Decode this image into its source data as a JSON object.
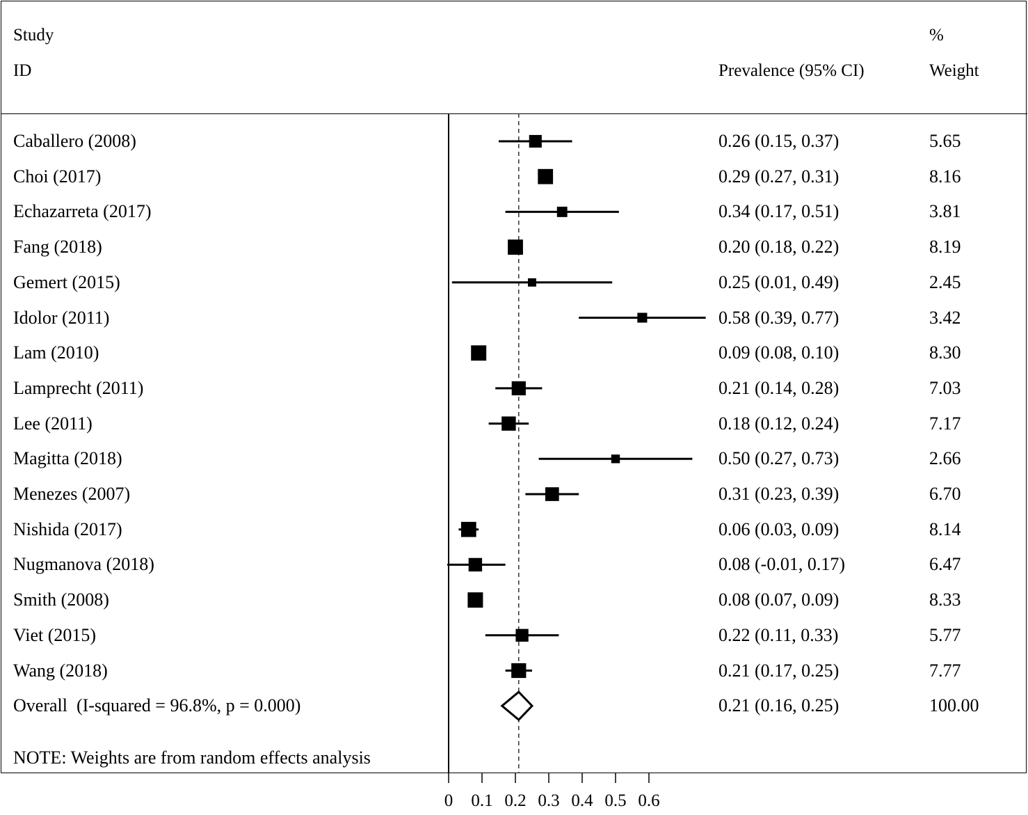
{
  "header": {
    "study_label": "Study",
    "id_label": "ID",
    "estimate_label": "Prevalence (95% CI)",
    "percent_label": "%",
    "weight_label": "Weight"
  },
  "note": "NOTE: Weights are from random effects analysis",
  "chart_data": {
    "type": "forest",
    "xaxis_ticks": [
      "0",
      "0.1",
      "0.2",
      "0.3",
      "0.4",
      "0.5",
      "0.6"
    ],
    "xlim": [
      0,
      0.6
    ],
    "reference_line": 0.21,
    "studies": [
      {
        "label": "Caballero (2008)",
        "estimate": 0.26,
        "lower": 0.15,
        "upper": 0.37,
        "ci_text": "0.26 (0.15, 0.37)",
        "weight": "5.65"
      },
      {
        "label": "Choi (2017)",
        "estimate": 0.29,
        "lower": 0.27,
        "upper": 0.31,
        "ci_text": "0.29 (0.27, 0.31)",
        "weight": "8.16"
      },
      {
        "label": "Echazarreta (2017)",
        "estimate": 0.34,
        "lower": 0.17,
        "upper": 0.51,
        "ci_text": "0.34 (0.17, 0.51)",
        "weight": "3.81"
      },
      {
        "label": "Fang (2018)",
        "estimate": 0.2,
        "lower": 0.18,
        "upper": 0.22,
        "ci_text": "0.20 (0.18, 0.22)",
        "weight": "8.19"
      },
      {
        "label": "Gemert (2015)",
        "estimate": 0.25,
        "lower": 0.01,
        "upper": 0.49,
        "ci_text": "0.25 (0.01, 0.49)",
        "weight": "2.45"
      },
      {
        "label": "Idolor (2011)",
        "estimate": 0.58,
        "lower": 0.39,
        "upper": 0.77,
        "ci_text": "0.58 (0.39, 0.77)",
        "weight": "3.42"
      },
      {
        "label": "Lam (2010)",
        "estimate": 0.09,
        "lower": 0.08,
        "upper": 0.1,
        "ci_text": "0.09 (0.08, 0.10)",
        "weight": "8.30"
      },
      {
        "label": "Lamprecht (2011)",
        "estimate": 0.21,
        "lower": 0.14,
        "upper": 0.28,
        "ci_text": "0.21 (0.14, 0.28)",
        "weight": "7.03"
      },
      {
        "label": "Lee (2011)",
        "estimate": 0.18,
        "lower": 0.12,
        "upper": 0.24,
        "ci_text": "0.18 (0.12, 0.24)",
        "weight": "7.17"
      },
      {
        "label": "Magitta (2018)",
        "estimate": 0.5,
        "lower": 0.27,
        "upper": 0.73,
        "ci_text": "0.50 (0.27, 0.73)",
        "weight": "2.66"
      },
      {
        "label": "Menezes (2007)",
        "estimate": 0.31,
        "lower": 0.23,
        "upper": 0.39,
        "ci_text": "0.31 (0.23, 0.39)",
        "weight": "6.70"
      },
      {
        "label": "Nishida (2017)",
        "estimate": 0.06,
        "lower": 0.03,
        "upper": 0.09,
        "ci_text": "0.06 (0.03, 0.09)",
        "weight": "8.14"
      },
      {
        "label": "Nugmanova (2018)",
        "estimate": 0.08,
        "lower": -0.01,
        "upper": 0.17,
        "ci_text": "0.08 (-0.01, 0.17)",
        "weight": "6.47"
      },
      {
        "label": "Smith (2008)",
        "estimate": 0.08,
        "lower": 0.07,
        "upper": 0.09,
        "ci_text": "0.08 (0.07, 0.09)",
        "weight": "8.33"
      },
      {
        "label": "Viet (2015)",
        "estimate": 0.22,
        "lower": 0.11,
        "upper": 0.33,
        "ci_text": "0.22 (0.11, 0.33)",
        "weight": "5.77"
      },
      {
        "label": "Wang (2018)",
        "estimate": 0.21,
        "lower": 0.17,
        "upper": 0.25,
        "ci_text": "0.21 (0.17, 0.25)",
        "weight": "7.77"
      }
    ],
    "overall": {
      "label": "Overall  (I-squared = 96.8%, p = 0.000)",
      "estimate": 0.21,
      "lower": 0.16,
      "upper": 0.25,
      "ci_text": "0.21 (0.16, 0.25)",
      "weight": "100.00"
    }
  }
}
